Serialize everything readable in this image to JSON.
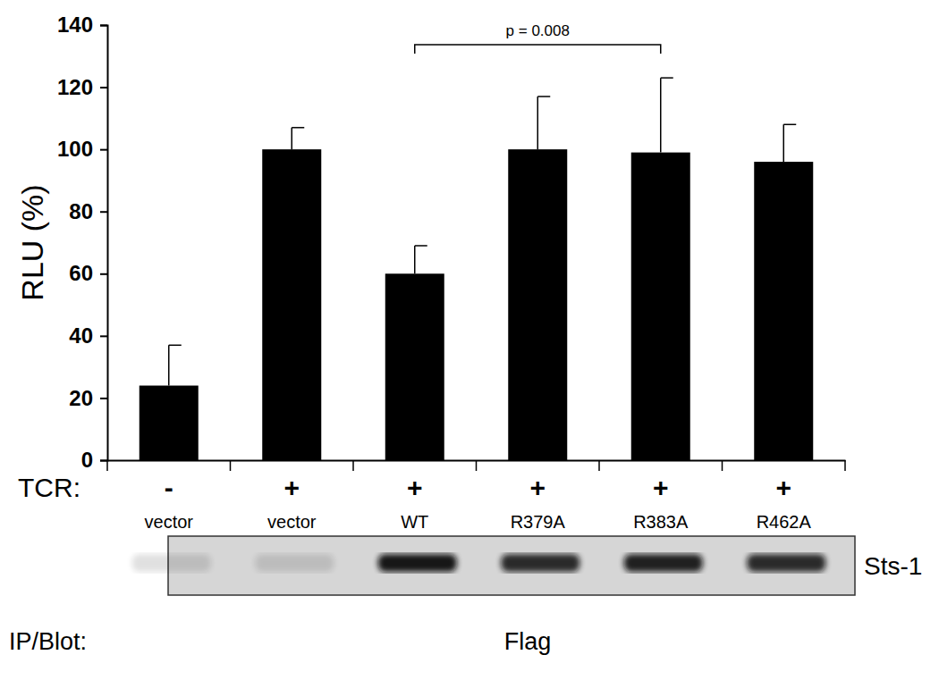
{
  "chart_data": {
    "type": "bar",
    "y_label": "RLU (%)",
    "categories": [
      "vector",
      "vector",
      "WT",
      "R379A",
      "R383A",
      "R462A"
    ],
    "values": [
      24,
      100,
      60,
      100,
      99,
      96
    ],
    "errors": [
      13,
      7,
      9,
      17,
      24,
      12
    ],
    "color": "#000000",
    "ylim": [
      0,
      140
    ],
    "yticks": [
      0,
      20,
      40,
      60,
      80,
      100,
      120,
      140
    ],
    "grid": false,
    "annotations": [
      {
        "text": "p = 0.008",
        "from": 2,
        "to": 4
      }
    ],
    "row_label": "TCR:",
    "row_values": [
      "-",
      "+",
      "+",
      "+",
      "+",
      "+"
    ],
    "blot": {
      "band_label": "Sts-1",
      "method_label": "IP/Blot:",
      "antibody": "Flag"
    }
  }
}
